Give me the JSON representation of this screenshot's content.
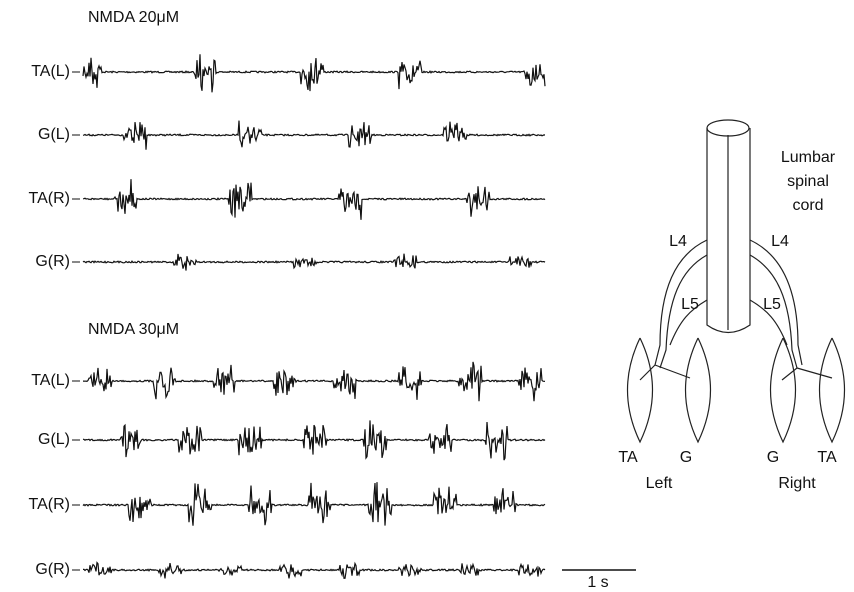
{
  "panels": [
    {
      "title": "NMDA 20μM",
      "traces": [
        "TA(L)",
        "G(L)",
        "TA(R)",
        "G(R)"
      ]
    },
    {
      "title": "NMDA 30μM",
      "traces": [
        "TA(L)",
        "G(L)",
        "TA(R)",
        "G(R)"
      ]
    }
  ],
  "scale_bar": "1 s",
  "diagram": {
    "cord_label": [
      "Lumbar",
      "spinal",
      "cord"
    ],
    "nerves": [
      "L4",
      "L4",
      "L5",
      "L5"
    ],
    "muscles": [
      "TA",
      "G",
      "G",
      "TA"
    ],
    "sides": [
      "Left",
      "Right"
    ]
  }
}
